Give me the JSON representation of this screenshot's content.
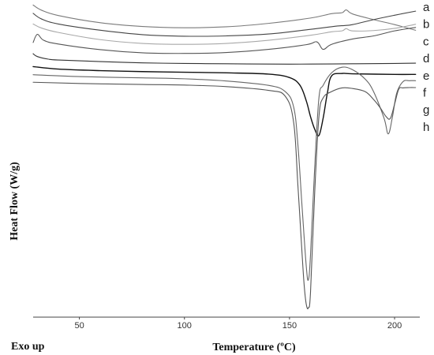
{
  "chart_data": {
    "type": "line",
    "xlabel": "Temperature (ºC)",
    "ylabel": "Heat Flow (W/g)",
    "corner_note": "Exo up",
    "x_ticks": [
      50,
      100,
      150,
      200
    ],
    "xlim": [
      28,
      212
    ],
    "y_ticks": false,
    "grid": false,
    "series": [
      {
        "name": "a",
        "color": "#7a7a7a",
        "x": [
          28,
          32,
          40,
          60,
          80,
          100,
          120,
          140,
          160,
          170,
          175,
          177,
          180,
          190,
          200,
          210
        ],
        "y": [
          0.35,
          2.0,
          3.7,
          6.0,
          7.2,
          7.6,
          7.3,
          6.2,
          4.5,
          3.1,
          2.8,
          1.9,
          3.2,
          5.0,
          6.6,
          8.4
        ]
      },
      {
        "name": "b",
        "color": "#444444",
        "x": [
          28,
          32,
          40,
          60,
          80,
          100,
          120,
          140,
          160,
          172,
          176,
          180,
          190,
          200,
          210
        ],
        "y": [
          3.0,
          4.8,
          6.4,
          8.4,
          9.8,
          10.3,
          10.2,
          9.6,
          8.1,
          7.1,
          6.9,
          6.6,
          5.0,
          3.6,
          2.3
        ]
      },
      {
        "name": "c",
        "color": "#a8a8a8",
        "x": [
          28,
          32,
          40,
          60,
          80,
          100,
          120,
          140,
          160,
          170,
          175,
          177,
          180,
          190,
          200,
          210
        ],
        "y": [
          6.4,
          7.7,
          9.1,
          11.4,
          12.6,
          12.9,
          12.6,
          11.6,
          10.0,
          8.9,
          8.6,
          7.9,
          8.6,
          8.5,
          7.8,
          6.5
        ]
      },
      {
        "name": "d",
        "color": "#555555",
        "x": [
          28,
          30,
          33,
          40,
          60,
          80,
          100,
          120,
          140,
          158,
          163,
          166,
          170,
          180,
          190,
          200,
          210
        ],
        "y": [
          12.3,
          9.7,
          11.6,
          12.8,
          14.6,
          15.6,
          15.8,
          15.5,
          14.5,
          13.0,
          12.1,
          14.5,
          12.9,
          11.2,
          10.2,
          8.6,
          7.5
        ]
      },
      {
        "name": "e",
        "color": "#333333",
        "x": [
          28,
          30,
          35,
          40,
          60,
          80,
          100,
          120,
          140,
          160,
          180,
          200,
          210
        ],
        "y": [
          15.9,
          16.8,
          17.6,
          17.9,
          18.4,
          18.8,
          19.0,
          19.1,
          19.2,
          19.2,
          19.1,
          19.0,
          18.9
        ]
      },
      {
        "name": "f",
        "color": "#111111",
        "x": [
          28,
          40,
          60,
          80,
          100,
          120,
          140,
          150,
          155,
          158,
          160,
          162,
          164,
          166,
          168,
          170,
          175,
          180,
          200,
          210
        ],
        "y": [
          20.0,
          20.8,
          21.3,
          21.6,
          21.8,
          22.0,
          22.4,
          23.5,
          26.0,
          31.0,
          36.0,
          40.0,
          42.0,
          36.5,
          28.5,
          23.0,
          22.2,
          22.3,
          22.5,
          22.5
        ]
      },
      {
        "name": "g",
        "color": "#666666",
        "x": [
          28,
          50,
          80,
          100,
          120,
          140,
          148,
          152,
          154,
          156,
          158,
          159,
          160,
          162,
          164,
          166,
          170,
          175,
          180,
          186,
          190,
          195,
          197,
          199,
          201,
          204,
          207,
          210
        ],
        "y": [
          22.6,
          23.2,
          23.6,
          23.9,
          24.6,
          26.0,
          28.0,
          33.0,
          45.0,
          65.0,
          84.0,
          88.0,
          80.0,
          52.0,
          30.0,
          26.0,
          22.0,
          20.2,
          21.0,
          24.0,
          28.0,
          36.5,
          41.5,
          36.0,
          28.5,
          24.8,
          24.5,
          24.5
        ]
      },
      {
        "name": "h",
        "color": "#555555",
        "x": [
          28,
          50,
          80,
          100,
          120,
          140,
          148,
          152,
          154,
          156,
          157,
          158,
          159,
          160,
          162,
          164,
          166,
          170,
          175,
          180,
          186,
          190,
          193,
          196,
          198,
          200,
          202,
          204,
          207,
          210
        ],
        "y": [
          25.0,
          25.4,
          25.7,
          25.9,
          26.4,
          27.6,
          29.5,
          38.0,
          58.0,
          80.0,
          90.0,
          96.0,
          97.0,
          92.0,
          60.0,
          36.0,
          30.0,
          28.0,
          26.8,
          27.0,
          28.0,
          30.5,
          33.0,
          36.0,
          36.5,
          32.0,
          27.2,
          26.8,
          26.7,
          26.7
        ]
      }
    ]
  }
}
